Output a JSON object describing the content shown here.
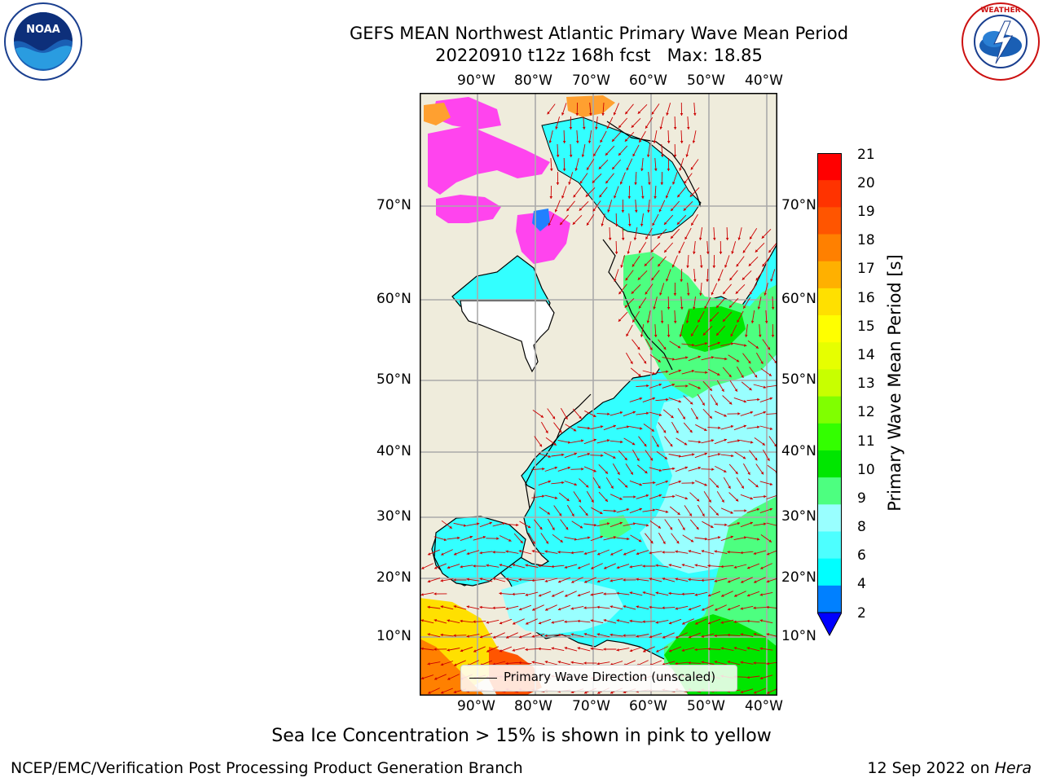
{
  "header": {
    "title_line1": "GEFS MEAN Northwest Atlantic Primary Wave Mean Period",
    "title_line2": "20220910 t12z 168h fcst   Max: 18.85"
  },
  "logos": {
    "left": "NOAA",
    "left_ring_text": "NATIONAL OCEANIC AND ATMOSPHERIC ADMINISTRATION · U.S. DEPARTMENT OF COMMERCE",
    "right_ring_text": "NATIONAL WEATHER SERVICE"
  },
  "map": {
    "lon_labels": [
      "90°W",
      "80°W",
      "70°W",
      "60°W",
      "50°W",
      "40°W"
    ],
    "lat_labels": [
      "70°N",
      "60°N",
      "50°N",
      "40°N",
      "30°N",
      "20°N",
      "10°N"
    ],
    "legend_label": "Primary Wave Direction (unscaled)",
    "colors": {
      "land": "#efecdc",
      "ocean_cyan": "#33ffff",
      "light_cyan": "#99ffff",
      "green": "#4dff80",
      "arrow": "#cc0000"
    }
  },
  "colorbar": {
    "label": "Primary Wave Mean Period [s]",
    "ticks": [
      "21",
      "20",
      "19",
      "18",
      "17",
      "16",
      "15",
      "14",
      "13",
      "12",
      "11",
      "10",
      "9",
      "8",
      "6",
      "4",
      "2"
    ],
    "colors": [
      "#ff0000",
      "#ff3300",
      "#ff5500",
      "#ff8000",
      "#ffb000",
      "#ffe000",
      "#ffff00",
      "#e6ff00",
      "#c8ff00",
      "#80ff00",
      "#33ff00",
      "#00e600",
      "#4dff80",
      "#99ffff",
      "#4dffff",
      "#00ffff",
      "#0080ff"
    ],
    "under_color": "#0000ff"
  },
  "note": "Sea Ice Concentration > 15% is shown in pink to yellow",
  "footer": {
    "left": "NCEP/EMC/Verification Post Processing Product Generation Branch",
    "right_prefix": "12 Sep 2022 on ",
    "right_host": "Hera"
  }
}
